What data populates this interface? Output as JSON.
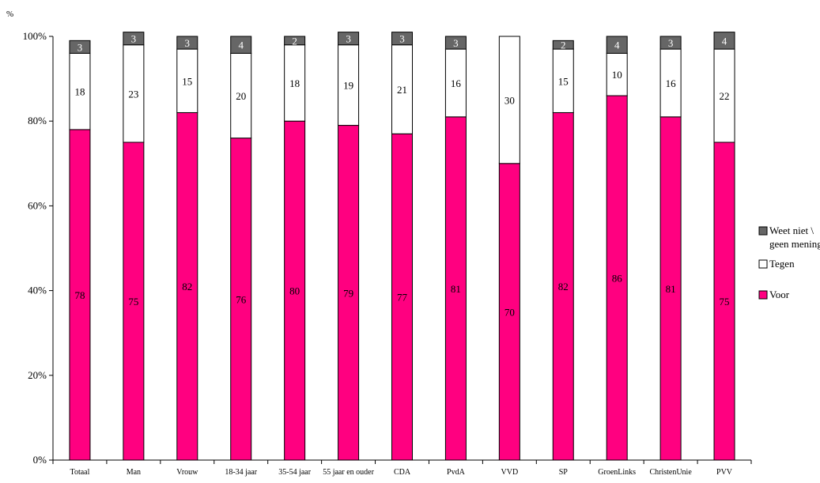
{
  "chart_data": {
    "type": "bar",
    "stacked": true,
    "percent": true,
    "unit_label": "%",
    "categories": [
      "Totaal",
      "Man",
      "Vrouw",
      "18-34 jaar",
      "35-54 jaar",
      "55 jaar en ouder",
      "CDA",
      "PvdA",
      "VVD",
      "SP",
      "GroenLinks",
      "ChristenUnie",
      "PVV"
    ],
    "series": [
      {
        "name": "Voor",
        "color": "#ff0080",
        "values": [
          78,
          75,
          82,
          76,
          80,
          79,
          77,
          81,
          70,
          82,
          86,
          81,
          75
        ]
      },
      {
        "name": "Tegen",
        "color": "#ffffff",
        "values": [
          18,
          23,
          15,
          20,
          18,
          19,
          21,
          16,
          30,
          15,
          10,
          16,
          22
        ]
      },
      {
        "name": "Weet niet \\ geen mening",
        "color": "#666666",
        "values": [
          3,
          3,
          3,
          4,
          2,
          3,
          3,
          3,
          0,
          2,
          4,
          3,
          4
        ]
      }
    ],
    "yticks": [
      "0%",
      "20%",
      "40%",
      "60%",
      "80%",
      "100%"
    ],
    "ylim": [
      0,
      100
    ],
    "grid": false,
    "legend_position": "right",
    "legend_lines": [
      [
        "Weet niet \\",
        "geen mening"
      ],
      [
        "Tegen"
      ],
      [
        "Voor"
      ]
    ]
  }
}
